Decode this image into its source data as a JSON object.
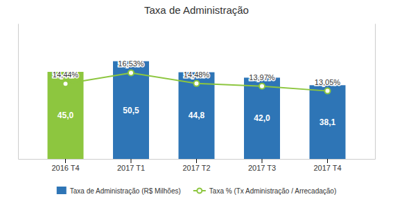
{
  "chart_data": {
    "type": "bar",
    "title": "Taxa de Administração",
    "categories": [
      "2016 T4",
      "2017 T1",
      "2017 T2",
      "2017 T3",
      "2017 T4"
    ],
    "series": [
      {
        "name": "Taxa de Administração (R$ Milhões)",
        "type": "bar",
        "color": "#2E75B6",
        "colors": [
          "#8DC63F",
          "#2E75B6",
          "#2E75B6",
          "#2E75B6",
          "#2E75B6"
        ],
        "values": [
          45.0,
          50.5,
          44.8,
          42.0,
          38.1
        ],
        "value_labels": [
          "45,0",
          "50,5",
          "44,8",
          "42,0",
          "38,1"
        ]
      },
      {
        "name": "Taxa % (Tx Administração / Arrecadação)",
        "type": "line",
        "axis": "y2",
        "color": "#8DC63F",
        "marker": "circle",
        "values": [
          14.44,
          16.53,
          14.48,
          13.97,
          13.05
        ],
        "value_labels": [
          "14,44%",
          "16,53%",
          "14,48%",
          "13,97%",
          "13,05%"
        ]
      }
    ],
    "ylim": [
      0,
      70
    ],
    "y2lim": [
      0,
      26
    ],
    "data_labels": true,
    "tick_labels": "x",
    "grid": false,
    "legend": "bottom"
  }
}
